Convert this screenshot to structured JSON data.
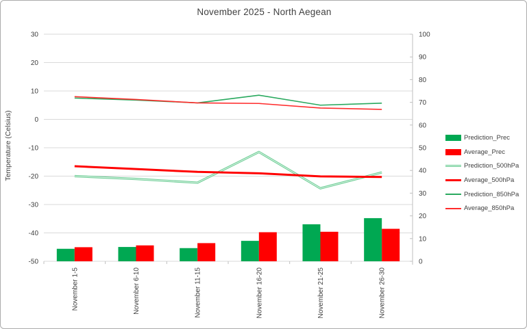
{
  "title": "November 2025 - North Aegean",
  "y_axis_title": "Temperature (Celsius)",
  "legend": [
    {
      "label": "Prediction_Prec",
      "swatch": "bar",
      "color": "#00a852"
    },
    {
      "label": "Average_Prec",
      "swatch": "bar",
      "color": "#ff0000"
    },
    {
      "label": "Prediction_500hPa",
      "swatch": "line-double",
      "color": "#6ece96"
    },
    {
      "label": "Average_500hPa",
      "swatch": "line-thick",
      "color": "#ff0000"
    },
    {
      "label": "Prediction_850hPa",
      "swatch": "line",
      "color": "#29a95e"
    },
    {
      "label": "Average_850hPa",
      "swatch": "line",
      "color": "#ff2b2b"
    }
  ],
  "chart_data": {
    "type": "combo bar+line",
    "title": "November 2025 - North Aegean",
    "categories": [
      "November 1-5",
      "November 6-10",
      "November 11-15",
      "November 16-20",
      "November 21-25",
      "November 26-30"
    ],
    "axes": {
      "left": {
        "label": "Temperature (Celsius)",
        "min": -50,
        "max": 30,
        "ticks": [
          30,
          20,
          10,
          0,
          -10,
          -20,
          -30,
          -40,
          -50
        ]
      },
      "right": {
        "label": "",
        "min": 0,
        "max": 100,
        "ticks": [
          100,
          90,
          80,
          70,
          60,
          50,
          40,
          30,
          20,
          10,
          0
        ]
      }
    },
    "grid": true,
    "legend_position": "right",
    "series": [
      {
        "name": "Prediction_Prec",
        "type": "bar",
        "axis": "right",
        "color": "#00a852",
        "values": [
          5.5,
          6.3,
          5.8,
          9.0,
          16.3,
          19.0
        ]
      },
      {
        "name": "Average_Prec",
        "type": "bar",
        "axis": "right",
        "color": "#ff0000",
        "values": [
          6.2,
          7.0,
          8.0,
          12.8,
          13.0,
          14.3
        ]
      },
      {
        "name": "Prediction_500hPa",
        "type": "line",
        "axis": "left",
        "color": "#6ece96",
        "style": "double",
        "width": 3.2,
        "values": [
          -20.0,
          -21.0,
          -22.3,
          -11.5,
          -24.3,
          -18.7
        ]
      },
      {
        "name": "Average_500hPa",
        "type": "line",
        "axis": "left",
        "color": "#ff0000",
        "style": "thick",
        "width": 3.0,
        "values": [
          -16.5,
          -17.5,
          -18.5,
          -19.0,
          -20.1,
          -20.3
        ]
      },
      {
        "name": "Prediction_850hPa",
        "type": "line",
        "axis": "left",
        "color": "#29a95e",
        "style": "thin",
        "width": 1.6,
        "values": [
          7.5,
          6.8,
          5.8,
          8.5,
          5.0,
          5.7
        ]
      },
      {
        "name": "Average_850hPa",
        "type": "line",
        "axis": "left",
        "color": "#ff2b2b",
        "style": "thin",
        "width": 1.6,
        "values": [
          8.0,
          7.0,
          5.8,
          5.6,
          4.0,
          3.5
        ]
      }
    ],
    "colors": {
      "gridline": "#d9d9d9",
      "axis_line": "#bfbfbf",
      "text": "#404040",
      "title_text": "#3f3f3f"
    }
  }
}
